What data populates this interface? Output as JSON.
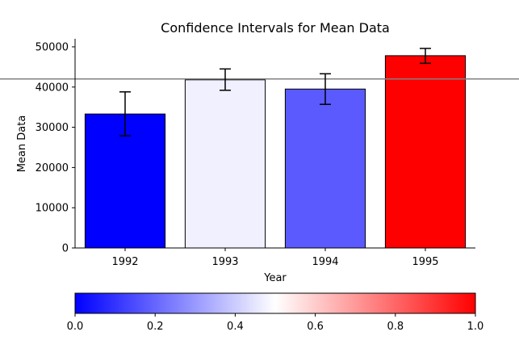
{
  "chart_data": {
    "type": "bar",
    "title": "Confidence Intervals for Mean Data",
    "xlabel": "Year",
    "ylabel": "Mean Data",
    "categories": [
      "1992",
      "1993",
      "1994",
      "1995"
    ],
    "values": [
      33300,
      41800,
      39500,
      47800
    ],
    "error_low": [
      27900,
      39200,
      35700,
      45900
    ],
    "error_high": [
      38800,
      44500,
      43300,
      49600
    ],
    "bar_colors": [
      "#0000ff",
      "#f0f0ff",
      "#5a5aff",
      "#ff0000"
    ],
    "ylim": [
      0,
      52000
    ],
    "yticks": [
      0,
      10000,
      20000,
      30000,
      40000,
      50000
    ],
    "ytick_labels": [
      "0",
      "10000",
      "20000",
      "30000",
      "40000",
      "50000"
    ],
    "reference_line": {
      "y": 42000,
      "color": "#808080"
    },
    "grid": false,
    "colorbar": {
      "colormap": [
        "#0000ff",
        "#ffffff",
        "#ff0000"
      ],
      "ticks": [
        0.0,
        0.2,
        0.4,
        0.6,
        0.8,
        1.0
      ],
      "tick_labels": [
        "0.0",
        "0.2",
        "0.4",
        "0.6",
        "0.8",
        "1.0"
      ]
    }
  }
}
